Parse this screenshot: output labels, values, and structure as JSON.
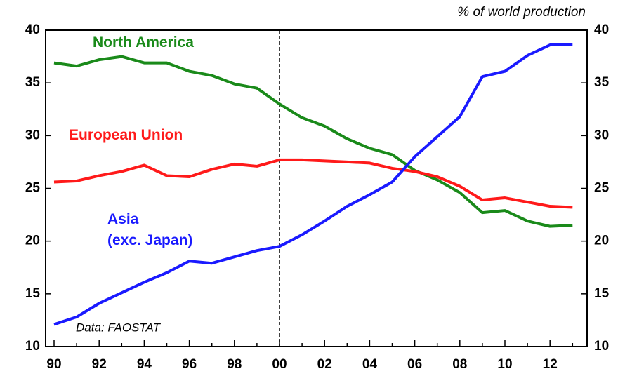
{
  "chart_data": {
    "type": "line",
    "subtitle": "% of world production",
    "annotation": "Data: FAOSTAT",
    "categories": [
      "90",
      null,
      "92",
      null,
      "94",
      null,
      "96",
      null,
      "98",
      null,
      "00",
      null,
      "02",
      null,
      "04",
      null,
      "06",
      null,
      "08",
      null,
      "10",
      null,
      "12",
      null
    ],
    "series": [
      {
        "name": "North America",
        "color": "#1a8a1a",
        "values": [
          36.9,
          36.6,
          37.2,
          37.5,
          36.9,
          36.9,
          36.1,
          35.7,
          34.9,
          34.5,
          33.0,
          31.7,
          30.9,
          29.7,
          28.8,
          28.2,
          26.7,
          25.8,
          24.6,
          22.7,
          22.9,
          21.9,
          21.4,
          21.5
        ]
      },
      {
        "name": "European Union",
        "color": "#ff1a1a",
        "values": [
          25.6,
          25.7,
          26.2,
          26.6,
          27.2,
          26.2,
          26.1,
          26.8,
          27.3,
          27.1,
          27.7,
          27.7,
          27.6,
          27.5,
          27.4,
          26.9,
          26.6,
          26.1,
          25.2,
          23.9,
          24.1,
          23.7,
          23.3,
          23.2
        ]
      },
      {
        "name": "Asia\n(exc. Japan)",
        "color": "#1a1aff",
        "values": [
          12.1,
          12.8,
          14.1,
          15.1,
          16.1,
          17.0,
          18.1,
          17.9,
          18.5,
          19.1,
          19.5,
          20.6,
          21.9,
          23.3,
          24.4,
          25.6,
          28.0,
          29.9,
          31.8,
          35.6,
          36.1,
          37.6,
          38.6,
          38.6
        ]
      }
    ],
    "vline": "00",
    "ylim": [
      10,
      40
    ],
    "yticks": [
      10,
      15,
      20,
      25,
      30,
      35,
      40
    ],
    "y2lim": [
      10,
      40
    ],
    "y2ticks": [
      10,
      15,
      20,
      25,
      30,
      35,
      40
    ],
    "grid": false
  }
}
